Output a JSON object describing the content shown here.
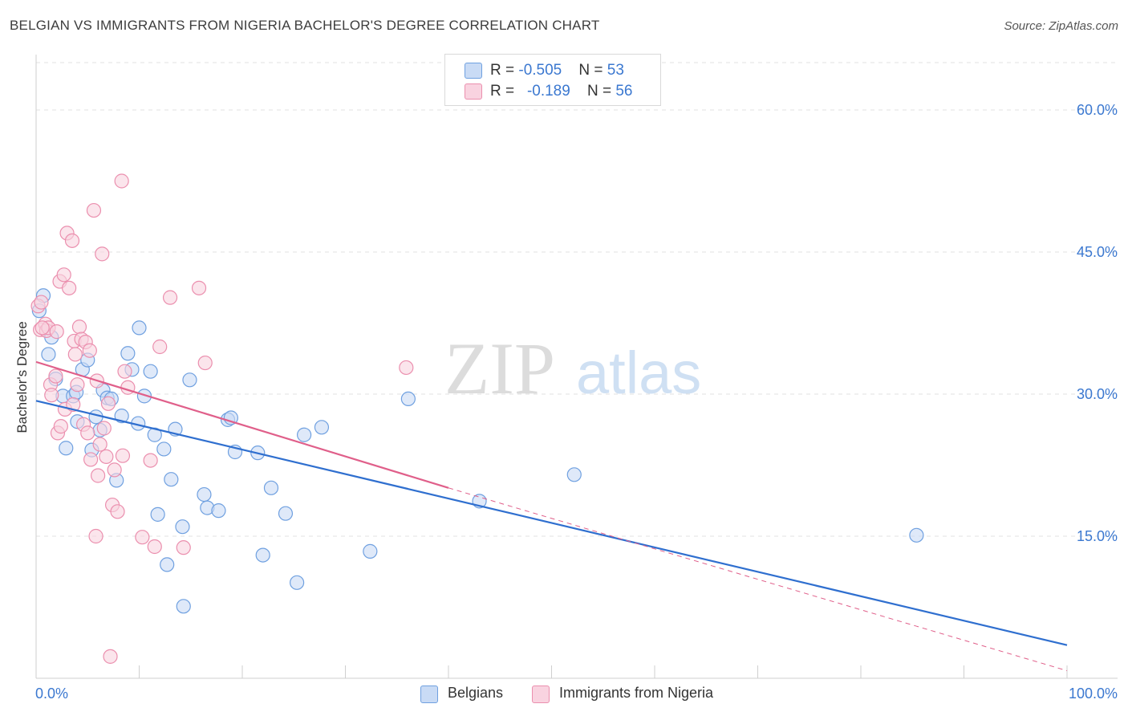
{
  "chart_data": {
    "type": "scatter",
    "title": "BELGIAN VS IMMIGRANTS FROM NIGERIA BACHELOR'S DEGREE CORRELATION CHART",
    "source": "Source: ZipAtlas.com",
    "ylabel": "Bachelor's Degree",
    "xlabel": "",
    "xlim": [
      0,
      100
    ],
    "ylim": [
      0,
      65
    ],
    "x_tick_labels": {
      "left": "0.0%",
      "right": "100.0%"
    },
    "y_ticks": [
      15,
      30,
      45,
      60
    ],
    "y_tick_labels": [
      "15.0%",
      "30.0%",
      "45.0%",
      "60.0%"
    ],
    "watermark": {
      "zip": "ZIP",
      "atlas": "atlas"
    },
    "legend": {
      "rows": [
        {
          "r_label": "R = ",
          "r_value": "-0.505",
          "n_label": "N = ",
          "n_value": "53"
        },
        {
          "r_label": "R = ",
          "r_value": "-0.189",
          "n_label": "N = ",
          "n_value": "56"
        }
      ]
    },
    "series": [
      {
        "name": "Belgians",
        "color": "#6fa0e0",
        "fill": "#c9dbf5",
        "line_color": "#2f6fcf",
        "trend": {
          "x0": 0,
          "y0": 29.3,
          "x1": 100,
          "y1": 3.5
        },
        "points": [
          [
            0.3,
            38.8
          ],
          [
            0.7,
            40.4
          ],
          [
            1.2,
            34.2
          ],
          [
            1.5,
            36.0
          ],
          [
            1.9,
            31.6
          ],
          [
            2.6,
            29.8
          ],
          [
            2.9,
            24.3
          ],
          [
            3.6,
            29.8
          ],
          [
            3.9,
            30.2
          ],
          [
            4.0,
            27.1
          ],
          [
            4.5,
            32.6
          ],
          [
            5.0,
            33.6
          ],
          [
            5.4,
            24.1
          ],
          [
            5.8,
            27.6
          ],
          [
            6.2,
            26.2
          ],
          [
            6.5,
            30.4
          ],
          [
            6.9,
            29.6
          ],
          [
            7.3,
            29.5
          ],
          [
            7.8,
            20.9
          ],
          [
            8.3,
            27.7
          ],
          [
            8.9,
            34.3
          ],
          [
            9.3,
            32.6
          ],
          [
            9.9,
            26.9
          ],
          [
            10.0,
            37.0
          ],
          [
            10.5,
            29.8
          ],
          [
            11.1,
            32.4
          ],
          [
            11.5,
            25.7
          ],
          [
            11.8,
            17.3
          ],
          [
            12.4,
            24.2
          ],
          [
            12.7,
            12.0
          ],
          [
            13.1,
            21.0
          ],
          [
            13.5,
            26.3
          ],
          [
            14.2,
            16.0
          ],
          [
            14.3,
            7.6
          ],
          [
            14.9,
            31.5
          ],
          [
            16.3,
            19.4
          ],
          [
            16.6,
            18.0
          ],
          [
            17.7,
            17.7
          ],
          [
            18.6,
            27.3
          ],
          [
            18.9,
            27.5
          ],
          [
            19.3,
            23.9
          ],
          [
            21.5,
            23.8
          ],
          [
            22.0,
            13.0
          ],
          [
            22.8,
            20.1
          ],
          [
            24.2,
            17.4
          ],
          [
            25.3,
            10.1
          ],
          [
            26.0,
            25.7
          ],
          [
            27.7,
            26.5
          ],
          [
            32.4,
            13.4
          ],
          [
            36.1,
            29.5
          ],
          [
            43.0,
            18.7
          ],
          [
            52.2,
            21.5
          ],
          [
            85.4,
            15.1
          ]
        ]
      },
      {
        "name": "Immigrants from Nigeria",
        "color": "#eb8fae",
        "fill": "#f9d3e0",
        "line_color": "#e05f8a",
        "trend": {
          "x0": 0,
          "y0": 33.4,
          "x1": 40,
          "y1": 20.1
        },
        "trend_dashed": {
          "x0": 40,
          "y0": 20.1,
          "x1": 100,
          "y1": 0.8
        },
        "points": [
          [
            0.2,
            39.3
          ],
          [
            0.4,
            36.8
          ],
          [
            0.5,
            39.7
          ],
          [
            0.9,
            37.4
          ],
          [
            1.0,
            36.7
          ],
          [
            1.2,
            37.0
          ],
          [
            1.4,
            31.0
          ],
          [
            1.5,
            29.9
          ],
          [
            1.9,
            31.9
          ],
          [
            2.0,
            36.6
          ],
          [
            2.1,
            25.9
          ],
          [
            2.3,
            41.9
          ],
          [
            2.4,
            26.6
          ],
          [
            2.7,
            42.6
          ],
          [
            2.8,
            28.4
          ],
          [
            3.0,
            47.0
          ],
          [
            3.2,
            41.2
          ],
          [
            3.5,
            46.2
          ],
          [
            3.6,
            28.9
          ],
          [
            3.7,
            35.6
          ],
          [
            3.8,
            34.2
          ],
          [
            4.0,
            31.0
          ],
          [
            4.2,
            37.1
          ],
          [
            4.4,
            35.8
          ],
          [
            4.6,
            26.8
          ],
          [
            4.8,
            35.5
          ],
          [
            5.0,
            25.9
          ],
          [
            5.2,
            34.6
          ],
          [
            5.3,
            23.1
          ],
          [
            5.6,
            49.4
          ],
          [
            5.8,
            15.0
          ],
          [
            5.9,
            31.4
          ],
          [
            6.0,
            21.4
          ],
          [
            6.2,
            24.7
          ],
          [
            6.4,
            44.8
          ],
          [
            6.6,
            26.4
          ],
          [
            6.8,
            23.4
          ],
          [
            7.0,
            29.0
          ],
          [
            7.2,
            2.3
          ],
          [
            7.4,
            18.3
          ],
          [
            7.6,
            22.0
          ],
          [
            7.9,
            17.6
          ],
          [
            8.3,
            52.5
          ],
          [
            8.4,
            23.5
          ],
          [
            8.6,
            32.4
          ],
          [
            8.9,
            30.7
          ],
          [
            10.3,
            14.9
          ],
          [
            11.1,
            23.0
          ],
          [
            11.5,
            13.9
          ],
          [
            12.0,
            35.0
          ],
          [
            13.0,
            40.2
          ],
          [
            14.3,
            13.8
          ],
          [
            15.8,
            41.2
          ],
          [
            16.4,
            33.3
          ],
          [
            35.9,
            32.8
          ],
          [
            0.6,
            37.0
          ]
        ]
      }
    ]
  }
}
